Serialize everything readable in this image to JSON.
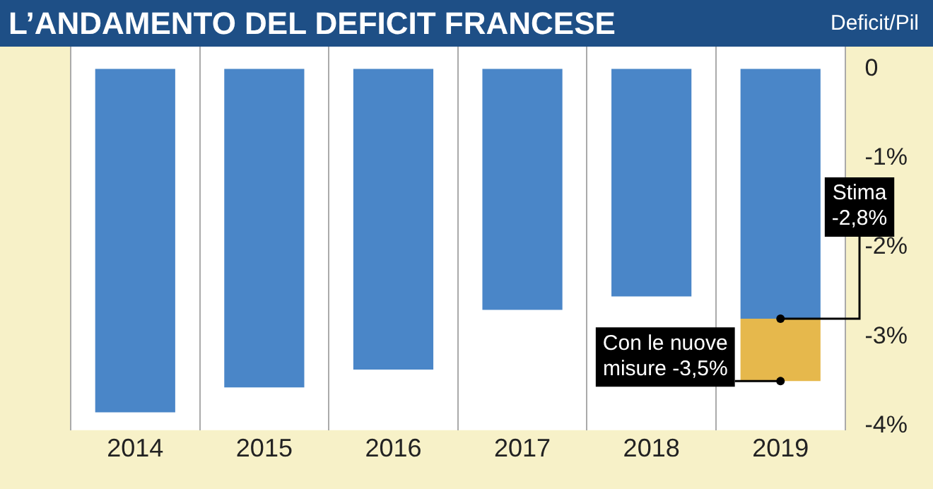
{
  "chart_data": {
    "type": "bar",
    "title": "L’ANDAMENTO DEL DEFICIT FRANCESE",
    "ylabel": "Deficit/Pil",
    "categories": [
      "2014",
      "2015",
      "2016",
      "2017",
      "2018",
      "2019"
    ],
    "stacked": true,
    "series": [
      {
        "color": "#4a86c8",
        "values": [
          -3.85,
          -3.57,
          -3.37,
          -2.7,
          -2.55,
          -2.8
        ]
      },
      {
        "color": "#e6b84c",
        "values": [
          null,
          null,
          null,
          null,
          null,
          -0.7
        ]
      }
    ],
    "ylim": [
      -4.05,
      0.25
    ],
    "yticks": [
      {
        "value": 0,
        "label": "0"
      },
      {
        "value": -1,
        "label": "-1%"
      },
      {
        "value": -2,
        "label": "-2%"
      },
      {
        "value": -3,
        "label": "-3%"
      },
      {
        "value": -4,
        "label": "-4%"
      }
    ],
    "grid": "x",
    "legend": false,
    "annotations": [
      {
        "text": "Stima -2,8%",
        "x": "2019",
        "y": -2.8
      },
      {
        "text": "Con le nuove misure -3,5%",
        "x": "2019",
        "y": -3.5
      }
    ]
  }
}
